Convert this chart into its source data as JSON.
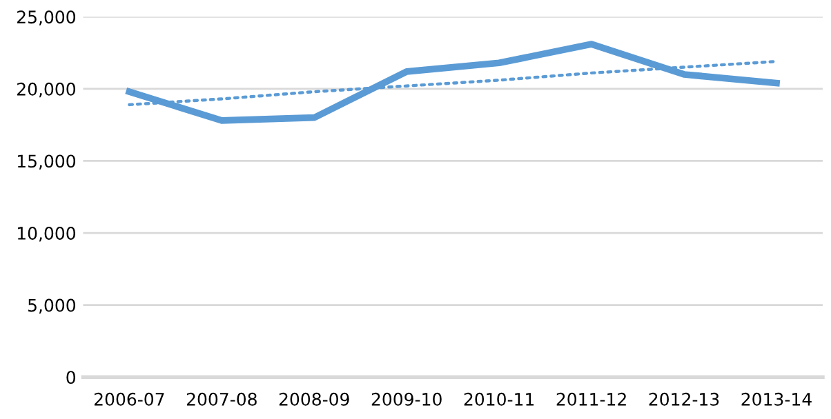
{
  "chart_data": {
    "type": "line",
    "categories": [
      "2006-07",
      "2007-08",
      "2008-09",
      "2009-10",
      "2010-11",
      "2011-12",
      "2012-13",
      "2013-14"
    ],
    "series": [
      {
        "color": "#5b9bd5",
        "values": [
          19800,
          17800,
          18000,
          21200,
          21800,
          23100,
          21000,
          20400
        ],
        "line_style": "solid"
      },
      {
        "type": "line",
        "color": "#5b9bd5",
        "values": [
          18900,
          19300,
          19800,
          20200,
          20600,
          21100,
          21500,
          21900
        ],
        "line_style": "dotted"
      }
    ],
    "ylim": [
      0,
      25000
    ],
    "yticks": [
      {
        "value": 0,
        "label": "0"
      },
      {
        "value": 5000,
        "label": "5,000"
      },
      {
        "value": 10000,
        "label": "10,000"
      },
      {
        "value": 15000,
        "label": "15,000"
      },
      {
        "value": 20000,
        "label": "20,000"
      },
      {
        "value": 25000,
        "label": "25,000"
      }
    ],
    "grid": "y",
    "marker": "none"
  }
}
